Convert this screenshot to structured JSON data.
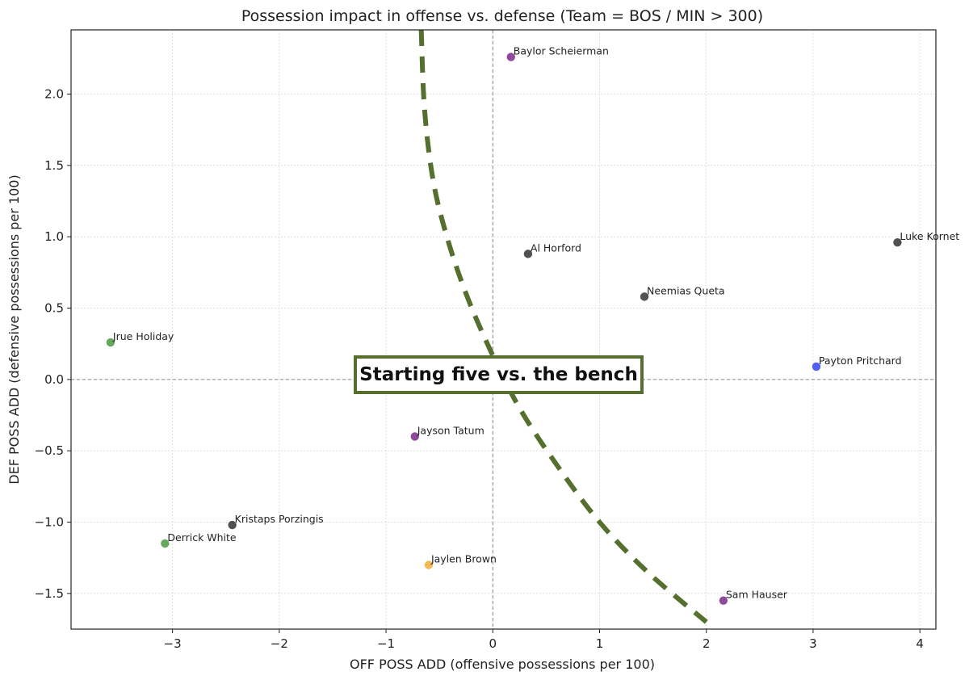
{
  "chart_data": {
    "type": "scatter",
    "title": "Possession impact in offense vs. defense (Team = BOS / MIN > 300)",
    "xlabel": "OFF POSS ADD (offensive possessions per 100)",
    "ylabel": "DEF POSS ADD (defensive possessions per 100)",
    "xlim": [
      -3.95,
      4.15
    ],
    "ylim": [
      -1.75,
      2.45
    ],
    "x_ticks": [
      -3,
      -2,
      -1,
      0,
      1,
      2,
      3,
      4
    ],
    "y_ticks": [
      -1.5,
      -1.0,
      -0.5,
      0.0,
      0.5,
      1.0,
      1.5,
      2.0
    ],
    "x_tick_labels": [
      "−3",
      "−2",
      "−1",
      "0",
      "1",
      "2",
      "3",
      "4"
    ],
    "y_tick_labels": [
      "−1.5",
      "−1.0",
      "−0.5",
      "0.0",
      "0.5",
      "1.0",
      "1.5",
      "2.0"
    ],
    "grid": true,
    "zero_lines": true,
    "points": [
      {
        "name": "Baylor Scheierman",
        "x": 0.17,
        "y": 2.26,
        "color": "#7b2a8c"
      },
      {
        "name": "Al Horford",
        "x": 0.33,
        "y": 0.88,
        "color": "#333333"
      },
      {
        "name": "Luke Kornet",
        "x": 3.79,
        "y": 0.96,
        "color": "#333333"
      },
      {
        "name": "Neemias Queta",
        "x": 1.42,
        "y": 0.58,
        "color": "#333333"
      },
      {
        "name": "Jrue Holiday",
        "x": -3.58,
        "y": 0.26,
        "color": "#4a9a3f"
      },
      {
        "name": "Payton Pritchard",
        "x": 3.03,
        "y": 0.09,
        "color": "#3344ee"
      },
      {
        "name": "Jayson Tatum",
        "x": -0.73,
        "y": -0.4,
        "color": "#7b2a8c"
      },
      {
        "name": "Kristaps Porzingis",
        "x": -2.44,
        "y": -1.02,
        "color": "#333333"
      },
      {
        "name": "Derrick White",
        "x": -3.07,
        "y": -1.15,
        "color": "#4a9a3f"
      },
      {
        "name": "Jaylen Brown",
        "x": -0.6,
        "y": -1.3,
        "color": "#f0ad3a"
      },
      {
        "name": "Sam Hauser",
        "x": 2.16,
        "y": -1.55,
        "color": "#7b2a8c"
      }
    ],
    "annotation": {
      "text": "Starting five vs. the bench",
      "curve": {
        "color": "#556f2f",
        "style": "dashed",
        "points": [
          [
            -0.67,
            2.45
          ],
          [
            -0.64,
            1.9
          ],
          [
            -0.56,
            1.4
          ],
          [
            -0.43,
            1.0
          ],
          [
            -0.25,
            0.6
          ],
          [
            -0.02,
            0.2
          ],
          [
            0.25,
            -0.2
          ],
          [
            0.6,
            -0.6
          ],
          [
            1.0,
            -1.0
          ],
          [
            1.45,
            -1.35
          ],
          [
            2.0,
            -1.7
          ]
        ]
      }
    }
  }
}
